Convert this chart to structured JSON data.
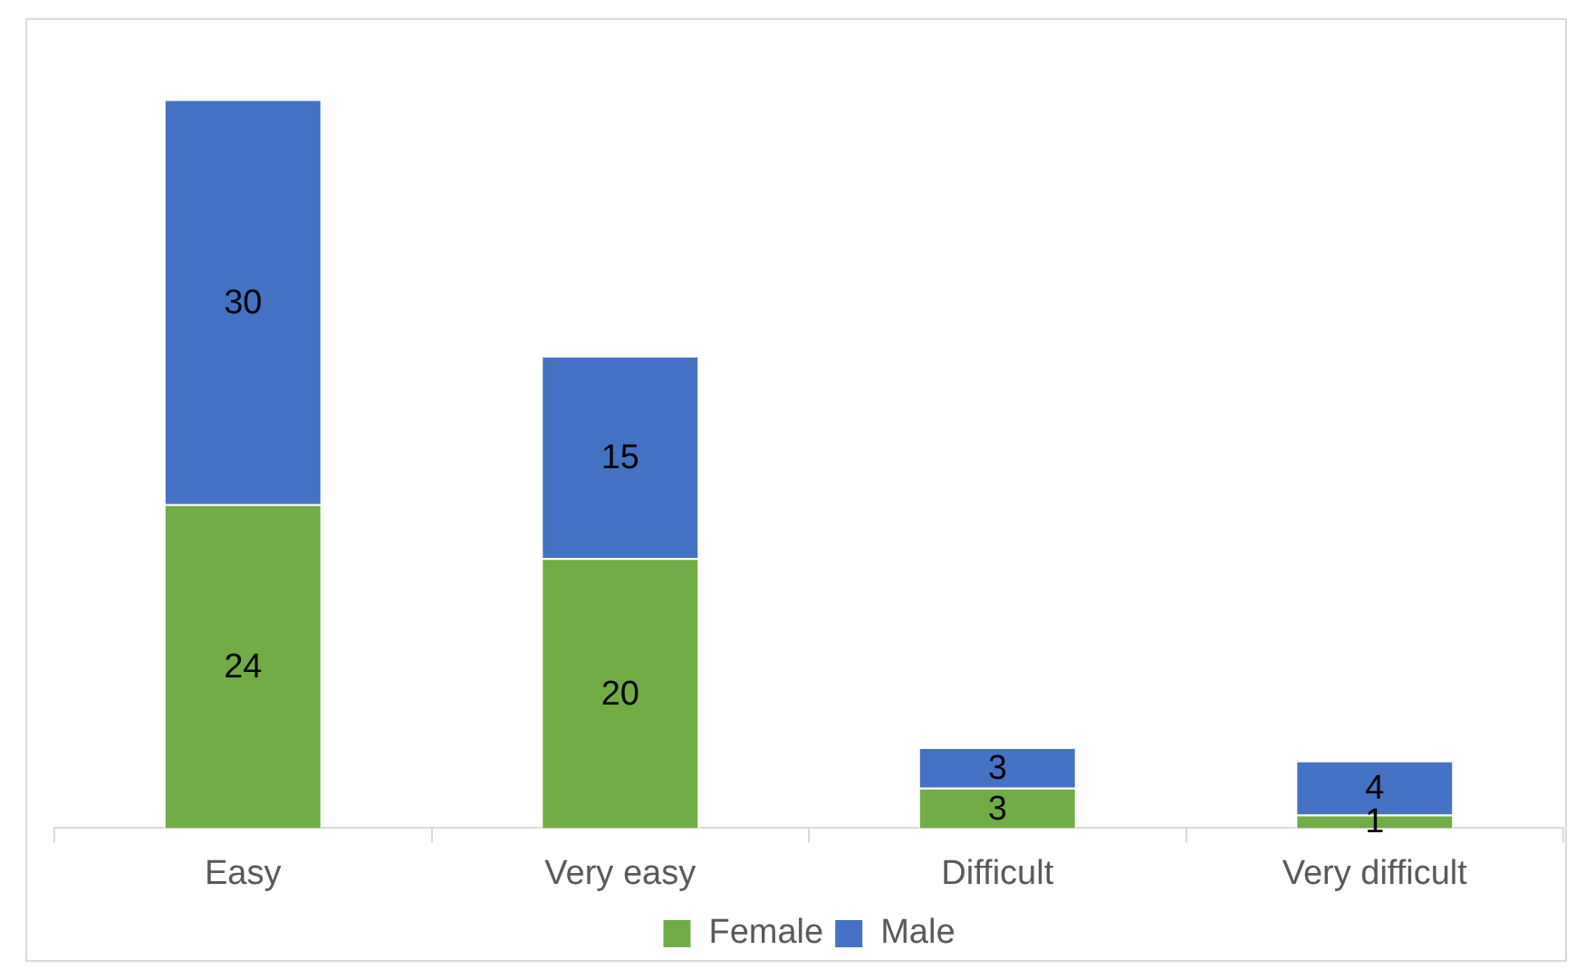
{
  "chart_data": {
    "type": "bar",
    "stacked": true,
    "categories": [
      "Easy",
      "Very easy",
      "Difficult",
      "Very difficult"
    ],
    "series": [
      {
        "name": "Female",
        "color": "#70ad47",
        "values": [
          24,
          20,
          3,
          1
        ]
      },
      {
        "name": "Male",
        "color": "#4472c4",
        "values": [
          30,
          15,
          3,
          4
        ]
      }
    ],
    "data_labels": true,
    "legend": "bottom",
    "grid": false
  }
}
